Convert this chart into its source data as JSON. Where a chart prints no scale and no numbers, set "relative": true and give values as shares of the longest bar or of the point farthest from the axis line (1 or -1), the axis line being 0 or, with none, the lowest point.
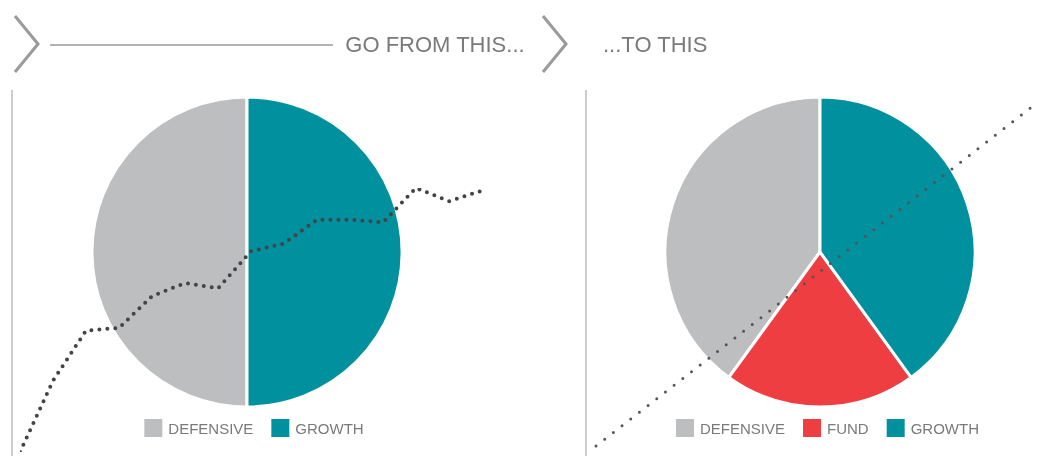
{
  "chart_data": [
    {
      "type": "pie",
      "title": "GO FROM THIS...",
      "categories": [
        "DEFENSIVE",
        "GROWTH"
      ],
      "values": [
        50,
        50
      ],
      "colors": [
        "#bdbec0",
        "#00909e"
      ],
      "legend": "bottom"
    },
    {
      "type": "pie",
      "title": "...TO THIS",
      "categories": [
        "DEFENSIVE",
        "FUND",
        "GROWTH"
      ],
      "values": [
        40,
        20,
        40
      ],
      "colors": [
        "#bdbec0",
        "#ef3e42",
        "#00909e"
      ],
      "legend": "bottom"
    },
    {
      "type": "line",
      "relative": true,
      "categories": [
        null,
        null,
        null,
        null,
        null,
        null,
        null,
        null,
        null,
        null,
        null,
        null,
        null,
        null,
        null
      ],
      "line_style": "dotted",
      "marker": "none",
      "series": [
        {
          "color": "#444444",
          "values": [
            0,
            0.27,
            0.46,
            0.47,
            0.59,
            0.64,
            0.62,
            0.76,
            0.79,
            0.88,
            0.88,
            0.87,
            1,
            0.95,
            0.99
          ]
        }
      ]
    }
  ]
}
